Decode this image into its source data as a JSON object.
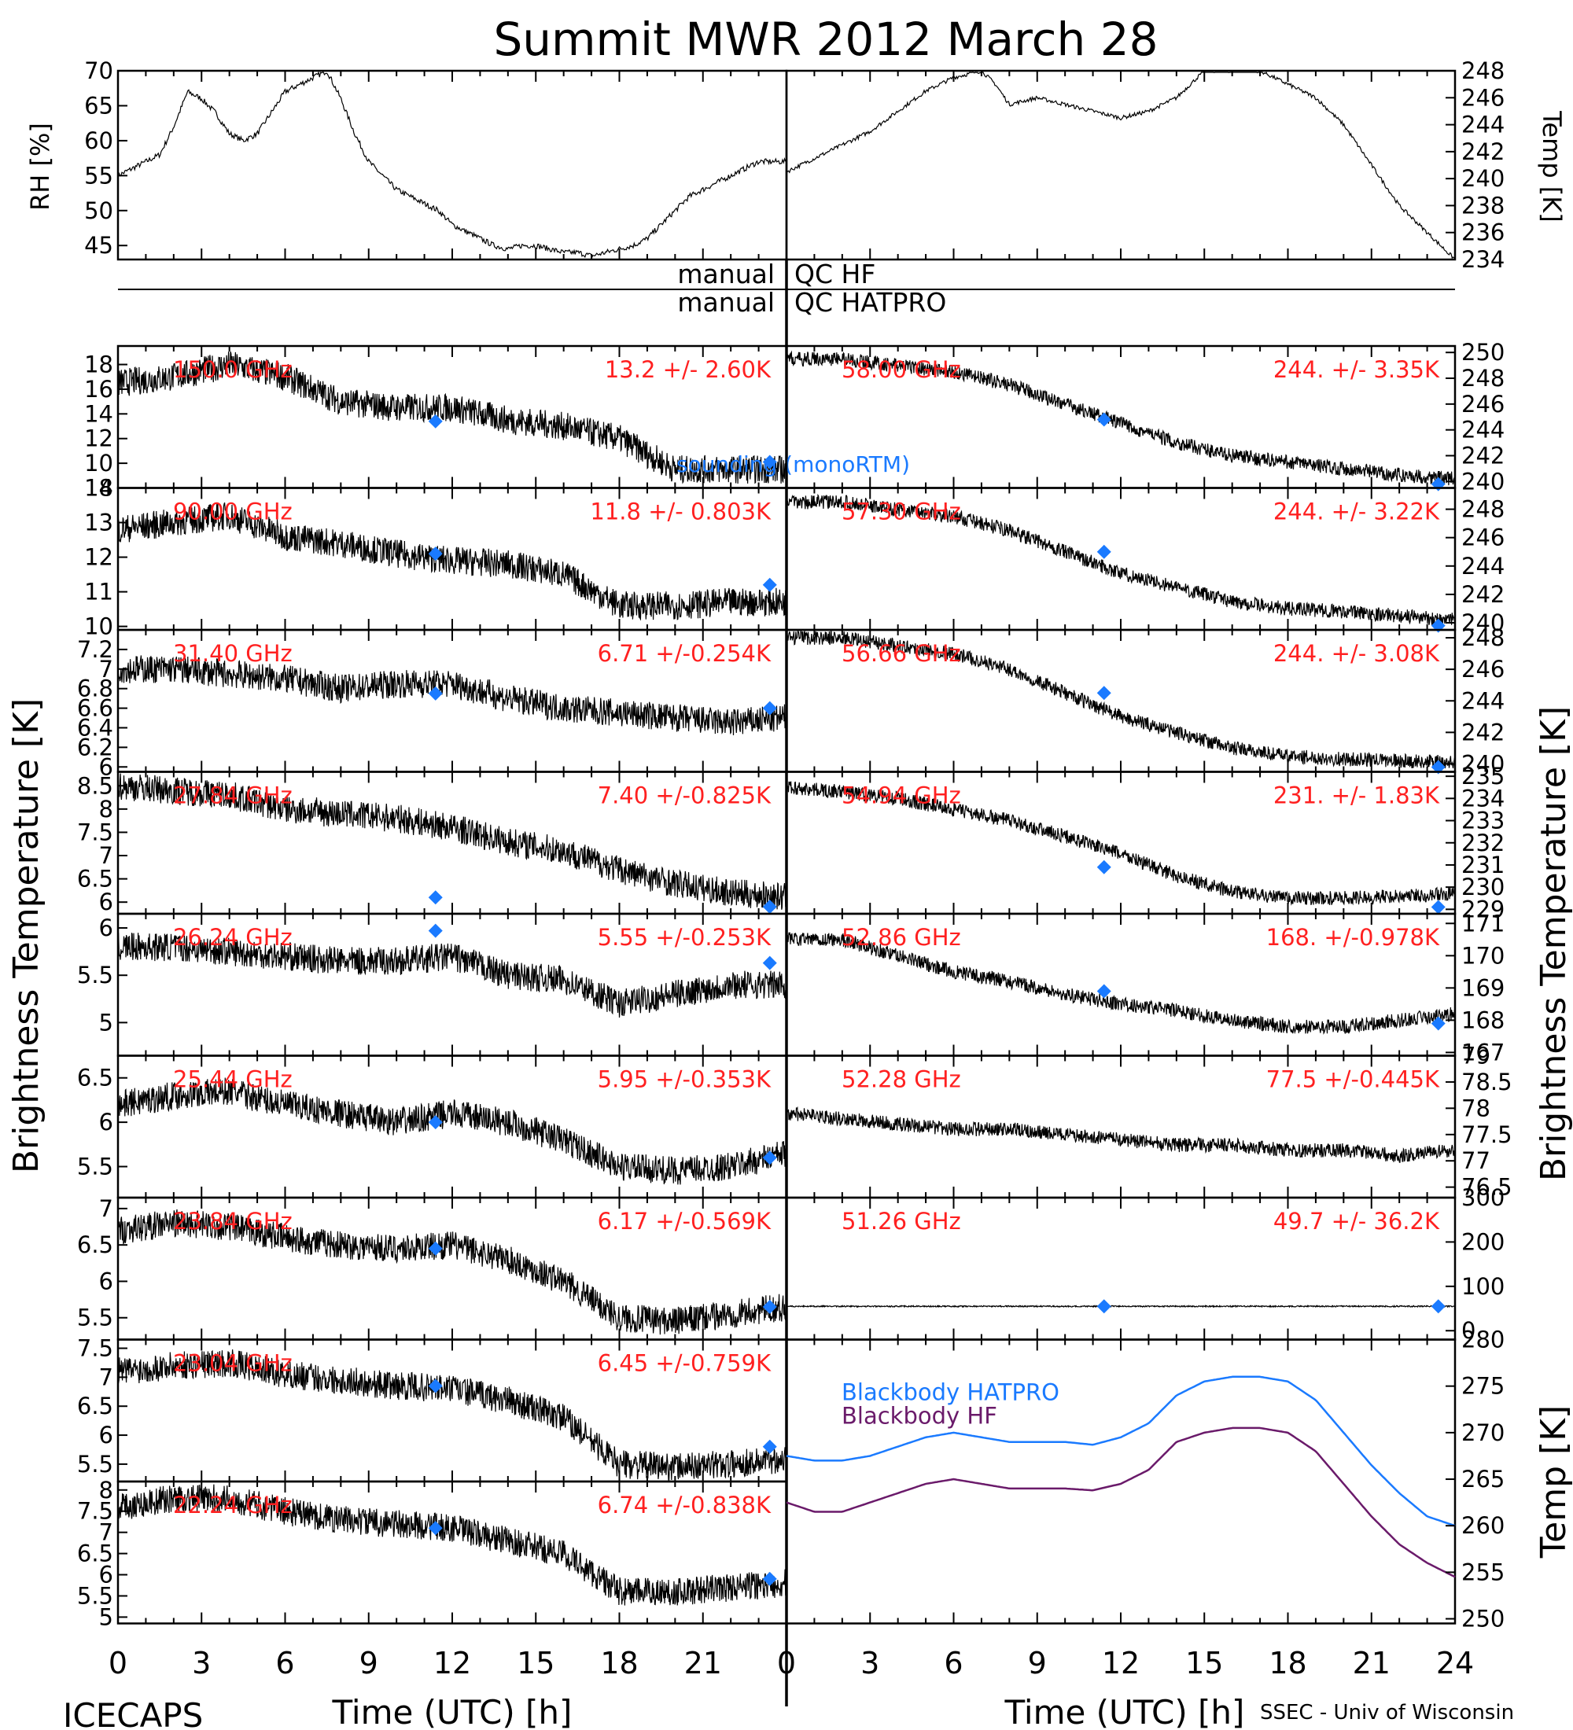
{
  "title": "Summit MWR 2012 March 28",
  "footer_left": "ICECAPS",
  "footer_right": "SSEC - Univ of Wisconsin",
  "colors": {
    "annotation": "#ff2020",
    "model_marker": "#1a7aff",
    "trace": "#000000",
    "blackbody_hatpro": "#1a7aff",
    "blackbody_hf": "#6a1a6a"
  },
  "qc": {
    "left_labels": [
      "manual",
      "manual"
    ],
    "right_labels": [
      "QC HF",
      "QC HATPRO"
    ]
  },
  "chart_data": [
    {
      "type": "line",
      "id": "rh",
      "ylabel": "RH [%]",
      "xlim": [
        0,
        24
      ],
      "ylim": [
        43,
        70
      ],
      "yticks": [
        45,
        50,
        55,
        60,
        65,
        70
      ],
      "series": [
        {
          "x": [
            0,
            0.5,
            1,
            1.5,
            2,
            2.5,
            3,
            3.5,
            4,
            4.5,
            5,
            5.5,
            6,
            6.5,
            7,
            7.5,
            8,
            8.5,
            9,
            9.5,
            10,
            10.5,
            11,
            11.5,
            12,
            12.5,
            13,
            13.5,
            14,
            14.5,
            15,
            15.5,
            16,
            16.5,
            17,
            17.5,
            18,
            18.5,
            19,
            19.5,
            20,
            20.5,
            21,
            21.5,
            22,
            22.5,
            23,
            23.5,
            24
          ],
          "y": [
            55,
            56,
            57,
            58,
            62,
            67,
            66,
            64,
            61,
            60,
            61,
            64,
            67,
            68,
            69,
            70,
            66,
            61,
            57,
            55,
            53,
            52,
            51,
            50,
            48,
            47,
            46,
            45,
            44.5,
            45,
            45,
            44.5,
            44,
            44,
            43.5,
            44,
            44.5,
            45,
            46,
            48,
            50,
            52,
            53,
            54,
            55,
            56,
            57,
            57,
            57
          ]
        }
      ]
    },
    {
      "type": "line",
      "id": "temp",
      "ylabel": "Temp [K]",
      "xlim": [
        0,
        24
      ],
      "ylim": [
        234,
        248
      ],
      "yticks": [
        234,
        236,
        238,
        240,
        242,
        244,
        246,
        248
      ],
      "series": [
        {
          "x": [
            0,
            1,
            2,
            3,
            4,
            5,
            6,
            7,
            7.5,
            8,
            9,
            10,
            11,
            12,
            13,
            14,
            15,
            16,
            17,
            18,
            19,
            20,
            21,
            22,
            23,
            24
          ],
          "y": [
            240.5,
            241.5,
            242.5,
            243.5,
            245,
            246.5,
            247.5,
            248,
            247,
            245.5,
            246,
            245.5,
            245,
            244.5,
            245,
            246,
            248,
            248,
            248,
            247,
            246,
            244,
            241,
            238,
            236,
            234
          ]
        }
      ]
    }
  ],
  "ylabel_left": "Brightness Temperature [K]",
  "ylabel_right": "Brightness Temperature [K]",
  "xlabel": "Time (UTC) [h]",
  "xticks": [
    0,
    3,
    6,
    9,
    12,
    15,
    18,
    21
  ],
  "xticks_right": [
    0,
    3,
    6,
    9,
    12,
    15,
    18,
    21,
    24
  ],
  "legend": {
    "sounding": "sounding (monoRTM)",
    "bb_hatpro": "Blackbody HATPRO",
    "bb_hf": "Blackbody HF"
  },
  "channels_left": [
    {
      "label": "150.0 GHz",
      "stat": "13.2 +/-  2.60K",
      "ylim": [
        8,
        19.5
      ],
      "yticks": [
        8,
        10,
        12,
        14,
        16,
        18
      ],
      "y": [
        16.5,
        17,
        18,
        17,
        15,
        14.5,
        14.5,
        13.5,
        13,
        12,
        9.5,
        9.5,
        9.5
      ],
      "model": [
        [
          11.4,
          13.4
        ],
        [
          23.4,
          10.1
        ]
      ]
    },
    {
      "label": "90.00 GHz",
      "stat": "11.8 +/- 0.803K",
      "ylim": [
        9.9,
        14
      ],
      "yticks": [
        10,
        11,
        12,
        13,
        14
      ],
      "y": [
        12.8,
        13,
        13.2,
        12.6,
        12.4,
        12.1,
        11.9,
        11.8,
        11.5,
        10.6,
        10.6,
        10.7,
        10.7
      ],
      "model": [
        [
          11.4,
          12.1
        ],
        [
          23.4,
          11.2
        ]
      ]
    },
    {
      "label": "31.40 GHz",
      "stat": "6.71 +/-0.254K",
      "ylim": [
        5.95,
        7.4
      ],
      "yticks": [
        6.0,
        6.2,
        6.4,
        6.6,
        6.8,
        7.0,
        7.2
      ],
      "y": [
        7.0,
        7.0,
        6.95,
        6.9,
        6.8,
        6.85,
        6.85,
        6.7,
        6.6,
        6.55,
        6.5,
        6.45,
        6.5
      ],
      "model": [
        [
          11.4,
          6.75
        ],
        [
          23.4,
          6.6
        ]
      ]
    },
    {
      "label": "27.84 GHz",
      "stat": "7.40 +/-0.825K",
      "ylim": [
        5.75,
        8.8
      ],
      "yticks": [
        6.0,
        6.5,
        7.0,
        7.5,
        8.0,
        8.5
      ],
      "y": [
        8.5,
        8.4,
        8.3,
        8.0,
        7.9,
        7.8,
        7.6,
        7.3,
        7.1,
        6.7,
        6.4,
        6.2,
        6.1
      ],
      "model": [
        [
          11.4,
          6.1
        ],
        [
          23.4,
          5.9
        ]
      ]
    },
    {
      "label": "26.24 GHz",
      "stat": "5.55 +/-0.253K",
      "ylim": [
        4.65,
        6.15
      ],
      "yticks": [
        5.0,
        5.5,
        6.0
      ],
      "y": [
        5.8,
        5.8,
        5.75,
        5.7,
        5.65,
        5.65,
        5.7,
        5.5,
        5.45,
        5.2,
        5.3,
        5.4,
        5.4
      ],
      "model": [
        [
          11.4,
          5.97
        ],
        [
          23.4,
          5.63
        ]
      ]
    },
    {
      "label": "25.44 GHz",
      "stat": "5.95 +/-0.353K",
      "ylim": [
        5.15,
        6.75
      ],
      "yticks": [
        5.5,
        6.0,
        6.5
      ],
      "y": [
        6.2,
        6.3,
        6.35,
        6.2,
        6.1,
        6.0,
        6.1,
        6.0,
        5.8,
        5.5,
        5.45,
        5.5,
        5.65
      ],
      "model": [
        [
          11.4,
          6.0
        ],
        [
          23.4,
          5.6
        ]
      ]
    },
    {
      "label": "23.84 GHz",
      "stat": "6.17 +/-0.569K",
      "ylim": [
        5.2,
        7.15
      ],
      "yticks": [
        5.5,
        6.0,
        6.5,
        7.0
      ],
      "y": [
        6.7,
        6.8,
        6.75,
        6.6,
        6.5,
        6.45,
        6.5,
        6.3,
        6.0,
        5.5,
        5.45,
        5.55,
        5.65
      ],
      "model": [
        [
          11.4,
          6.45
        ],
        [
          23.4,
          5.65
        ]
      ]
    },
    {
      "label": "23.04 GHz",
      "stat": "6.45 +/-0.759K",
      "ylim": [
        5.2,
        7.65
      ],
      "yticks": [
        5.5,
        6.0,
        6.5,
        7.0,
        7.5
      ],
      "y": [
        7.1,
        7.2,
        7.25,
        7.05,
        6.95,
        6.85,
        6.8,
        6.6,
        6.3,
        5.5,
        5.45,
        5.5,
        5.6
      ],
      "model": [
        [
          11.4,
          6.85
        ],
        [
          23.4,
          5.8
        ]
      ]
    },
    {
      "label": "22.24 GHz",
      "stat": "6.74 +/-0.838K",
      "ylim": [
        4.85,
        8.2
      ],
      "yticks": [
        5.0,
        5.5,
        6.0,
        6.5,
        7.0,
        7.5,
        8.0
      ],
      "y": [
        7.6,
        7.8,
        7.8,
        7.5,
        7.3,
        7.2,
        7.1,
        6.8,
        6.5,
        5.6,
        5.6,
        5.7,
        5.8
      ],
      "model": [
        [
          11.4,
          7.1
        ],
        [
          23.4,
          5.9
        ]
      ]
    }
  ],
  "channels_right": [
    {
      "label": "58.00 GHz",
      "stat": "244. +/- 3.35K",
      "ylim": [
        239.5,
        250.5
      ],
      "yticks": [
        240,
        242,
        244,
        246,
        248,
        250
      ],
      "y": [
        249.5,
        249.5,
        249,
        248.5,
        247.5,
        246,
        244.5,
        243,
        242,
        241.5,
        241,
        240.5,
        240.2
      ],
      "model": [
        [
          11.4,
          244.8
        ],
        [
          23.4,
          239.8
        ]
      ]
    },
    {
      "label": "57.30 GHz",
      "stat": "244. +/- 3.22K",
      "ylim": [
        239.5,
        249.5
      ],
      "yticks": [
        240,
        242,
        244,
        246,
        248
      ],
      "y": [
        248.5,
        248.5,
        248,
        247.5,
        246.5,
        245,
        243.5,
        242.5,
        241.5,
        241,
        240.8,
        240.5,
        240.2
      ],
      "model": [
        [
          11.4,
          245
        ],
        [
          23.4,
          239.8
        ]
      ]
    },
    {
      "label": "56.66 GHz",
      "stat": "244. +/- 3.08K",
      "ylim": [
        239.5,
        248.5
      ],
      "yticks": [
        240,
        242,
        244,
        246,
        248
      ],
      "y": [
        248,
        248,
        247.5,
        247,
        246,
        244.5,
        243,
        242,
        241,
        240.5,
        240.3,
        240.2,
        240.1
      ],
      "model": [
        [
          11.4,
          244.5
        ],
        [
          23.4,
          239.8
        ]
      ]
    },
    {
      "label": "54.94 GHz",
      "stat": "231. +/- 1.83K",
      "ylim": [
        228.8,
        235.2
      ],
      "yticks": [
        229,
        230,
        231,
        232,
        233,
        234,
        235
      ],
      "y": [
        234.5,
        234.3,
        234,
        233.5,
        233,
        232.3,
        231.5,
        230.5,
        229.8,
        229.5,
        229.5,
        229.6,
        229.7
      ],
      "model": [
        [
          11.4,
          230.9
        ],
        [
          23.4,
          229.1
        ]
      ]
    },
    {
      "label": "52.86 GHz",
      "stat": "168. +/-0.978K",
      "ylim": [
        166.9,
        171.3
      ],
      "yticks": [
        167,
        168,
        169,
        170,
        171
      ],
      "y": [
        170.5,
        170.5,
        170,
        169.5,
        169.2,
        168.8,
        168.5,
        168.3,
        168,
        167.8,
        167.8,
        168,
        168.2
      ],
      "model": [
        [
          11.4,
          168.9
        ],
        [
          23.4,
          167.9
        ]
      ]
    },
    {
      "label": "52.28 GHz",
      "stat": "77.5 +/-0.445K",
      "ylim": [
        76.3,
        79
      ],
      "yticks": [
        76.5,
        77.0,
        77.5,
        78.0,
        78.5,
        79.0
      ],
      "y": [
        77.9,
        77.8,
        77.7,
        77.6,
        77.6,
        77.5,
        77.4,
        77.3,
        77.3,
        77.2,
        77.2,
        77.1,
        77.2
      ],
      "model": []
    },
    {
      "label": "51.26 GHz",
      "stat": "49.7 +/- 36.2K",
      "ylim": [
        -20,
        300
      ],
      "yticks": [
        0,
        100,
        200,
        300
      ],
      "y": [
        55,
        55,
        55,
        55,
        55,
        55,
        55,
        55,
        55,
        55,
        55,
        55,
        55
      ],
      "model": [
        [
          11.4,
          55
        ],
        [
          23.4,
          55
        ]
      ]
    }
  ],
  "blackbody_panel": {
    "ylim": [
      249.5,
      280
    ],
    "yticks": [
      250,
      255,
      260,
      265,
      270,
      275,
      280
    ],
    "ylabel": "Temp [K]",
    "x": [
      0,
      1,
      2,
      3,
      4,
      5,
      6,
      7,
      8,
      9,
      10,
      11,
      12,
      13,
      14,
      15,
      16,
      17,
      18,
      19,
      20,
      21,
      22,
      23,
      24
    ],
    "hatpro": [
      267.5,
      267,
      267,
      267.5,
      268.5,
      269.5,
      270,
      269.5,
      269,
      269,
      269,
      268.7,
      269.5,
      271,
      274,
      275.5,
      276,
      276,
      275.5,
      273.5,
      270,
      266.5,
      263.5,
      261,
      260
    ],
    "hf": [
      262.5,
      261.5,
      261.5,
      262.5,
      263.5,
      264.5,
      265,
      264.5,
      264,
      264,
      264,
      263.8,
      264.5,
      266,
      269,
      270,
      270.5,
      270.5,
      270,
      268,
      264.5,
      261,
      258,
      256,
      254.5
    ]
  }
}
